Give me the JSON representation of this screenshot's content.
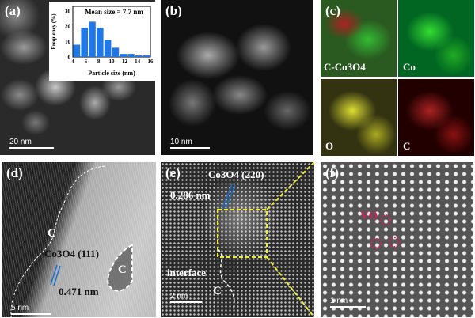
{
  "panels": {
    "a": {
      "label": "(a)",
      "scale_bar": "20 nm"
    },
    "b": {
      "label": "(b)",
      "scale_bar": "10 nm"
    },
    "c": {
      "label": "(c)",
      "maps": [
        "C-Co3O4",
        "Co",
        "O",
        "C"
      ],
      "map_colors": [
        "#3b3",
        "#2c2",
        "#dd3",
        "#c22"
      ]
    },
    "d": {
      "label": "(d)",
      "scale_bar": "5 nm",
      "annotations": {
        "carbon_outer": "C",
        "carbon_inner": "C",
        "plane": "Co3O4 (111)",
        "d_spacing": "0.471 nm"
      }
    },
    "e": {
      "label": "(e)",
      "scale_bar": "2 nm",
      "annotations": {
        "plane": "Co3O4 (220)",
        "d_spacing": "0.286 nm",
        "interface": "interface",
        "carbon": "C"
      }
    },
    "f": {
      "label": "(f)",
      "scale_bar": "1 nm",
      "annotations": {
        "vacancy": "VO"
      }
    }
  },
  "chart_data": {
    "type": "bar",
    "title": "Mean size = 7.7 nm",
    "xlabel": "Particle size (nm)",
    "ylabel": "Frequency (%)",
    "x": [
      4.6,
      5.8,
      7.0,
      8.2,
      9.4,
      10.6,
      11.8,
      13.0,
      14.2,
      15.4
    ],
    "values": [
      8,
      19,
      23,
      19,
      11,
      6,
      2,
      2,
      1,
      1
    ],
    "xlim": [
      4,
      16
    ],
    "ylim": [
      0,
      33
    ],
    "xticks": [
      4,
      6,
      8,
      10,
      12,
      14,
      16
    ],
    "yticks": [
      0,
      10,
      20,
      30
    ],
    "bar_color": "#1f77e8"
  }
}
